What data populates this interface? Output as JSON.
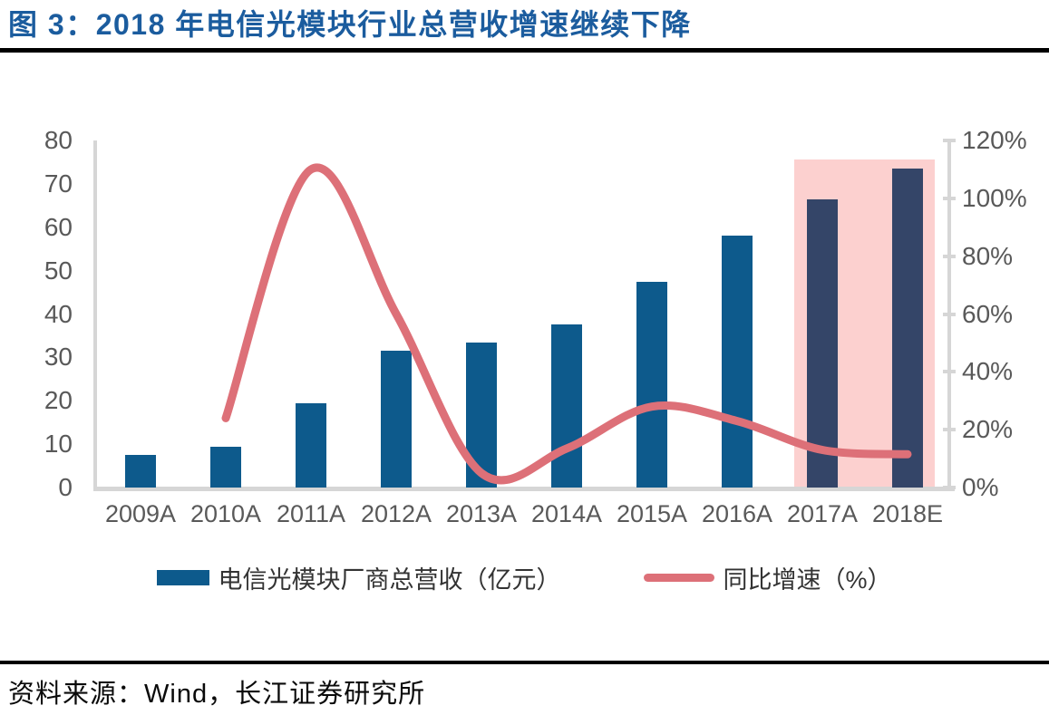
{
  "title": "图 3：2018 年电信光模块行业总营收增速继续下降",
  "source": "资料来源：Wind，长江证券研究所",
  "colors": {
    "title": "#1b5c9e",
    "rule": "#000000",
    "bar": "#0d5a8c",
    "bar_highlight": "#344568",
    "line": "#dd7078",
    "highlight_band": "#fcd0cf",
    "axis_line": "#d6d6d6",
    "tick_label": "#595959"
  },
  "chart_data": {
    "type": "bar+line combo",
    "title": "2018 年电信光模块行业总营收增速继续下降",
    "categories": [
      "2009A",
      "2010A",
      "2011A",
      "2012A",
      "2013A",
      "2014A",
      "2015A",
      "2016A",
      "2017A",
      "2018E"
    ],
    "series": [
      {
        "name": "电信光模块厂商总营收（亿元）",
        "type": "bar",
        "axis": "left",
        "values": [
          7.5,
          9.5,
          19.5,
          31.5,
          33.5,
          37.5,
          47.5,
          58,
          66.5,
          73.5
        ]
      },
      {
        "name": "同比增速（%）",
        "type": "line",
        "axis": "right",
        "values": [
          null,
          24,
          110,
          60,
          5,
          13.5,
          28,
          23,
          13,
          11.5
        ]
      }
    ],
    "left_axis": {
      "min": 0,
      "max": 80,
      "tick_labels": [
        "0",
        "10",
        "20",
        "30",
        "40",
        "50",
        "60",
        "70",
        "80"
      ]
    },
    "right_axis": {
      "min": 0,
      "max": 120,
      "tick_labels": [
        "0%",
        "20%",
        "40%",
        "60%",
        "80%",
        "100%",
        "120%"
      ]
    },
    "highlight_band": {
      "categories": [
        "2017A",
        "2018E"
      ]
    },
    "legend_position": "bottom",
    "grid": false
  }
}
